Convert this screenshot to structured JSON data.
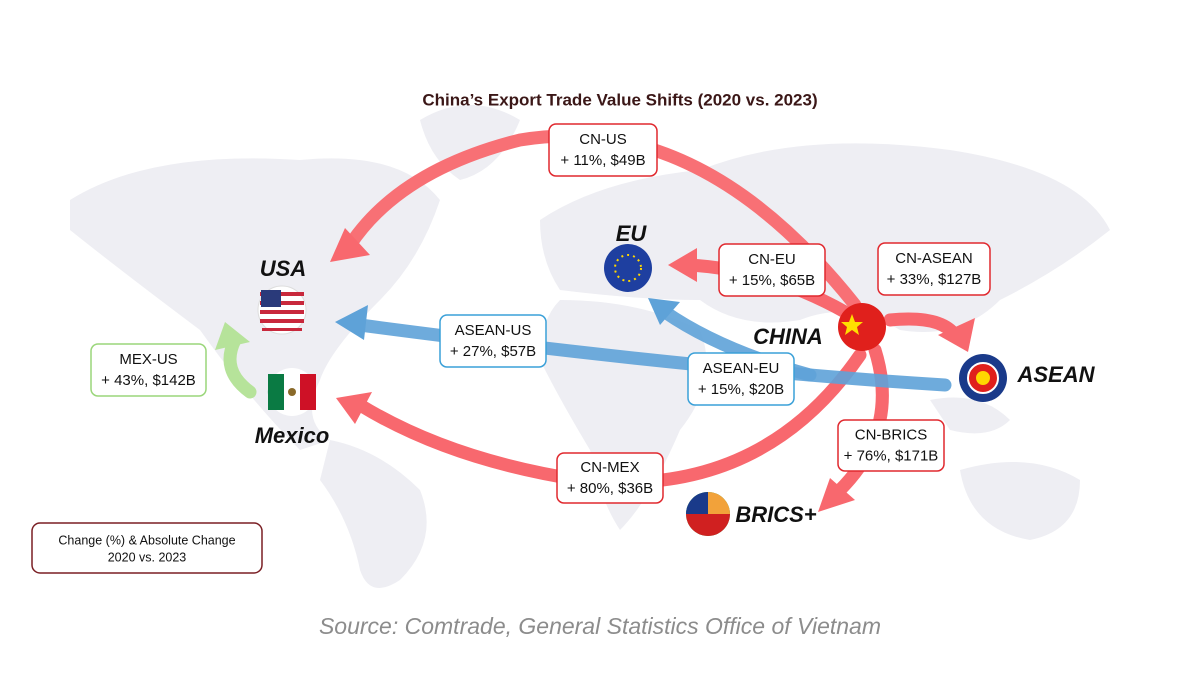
{
  "title": "China’s Export Trade Value Shifts (2020 vs. 2023)",
  "regions": {
    "usa": "USA",
    "eu": "EU",
    "china": "CHINA",
    "asean": "ASEAN",
    "mexico": "Mexico",
    "brics": "BRICS+"
  },
  "flows": [
    {
      "route": "CN-US",
      "change": "+ 11%, $49B"
    },
    {
      "route": "CN-EU",
      "change": "+ 15%, $65B"
    },
    {
      "route": "CN-ASEAN",
      "change": "+ 33%, $127B"
    },
    {
      "route": "ASEAN-US",
      "change": "+ 27%, $57B"
    },
    {
      "route": "ASEAN-EU",
      "change": "+ 15%, $20B"
    },
    {
      "route": "MEX-US",
      "change": "+ 43%, $142B"
    },
    {
      "route": "CN-MEX",
      "change": "+ 80%, $36B"
    },
    {
      "route": "CN-BRICS",
      "change": "+ 76%, $171B"
    }
  ],
  "legend": {
    "line1": "Change (%) & Absolute Change",
    "line2": "2020 vs. 2023"
  },
  "source": "Source: Comtrade, General Statistics Office of Vietnam"
}
